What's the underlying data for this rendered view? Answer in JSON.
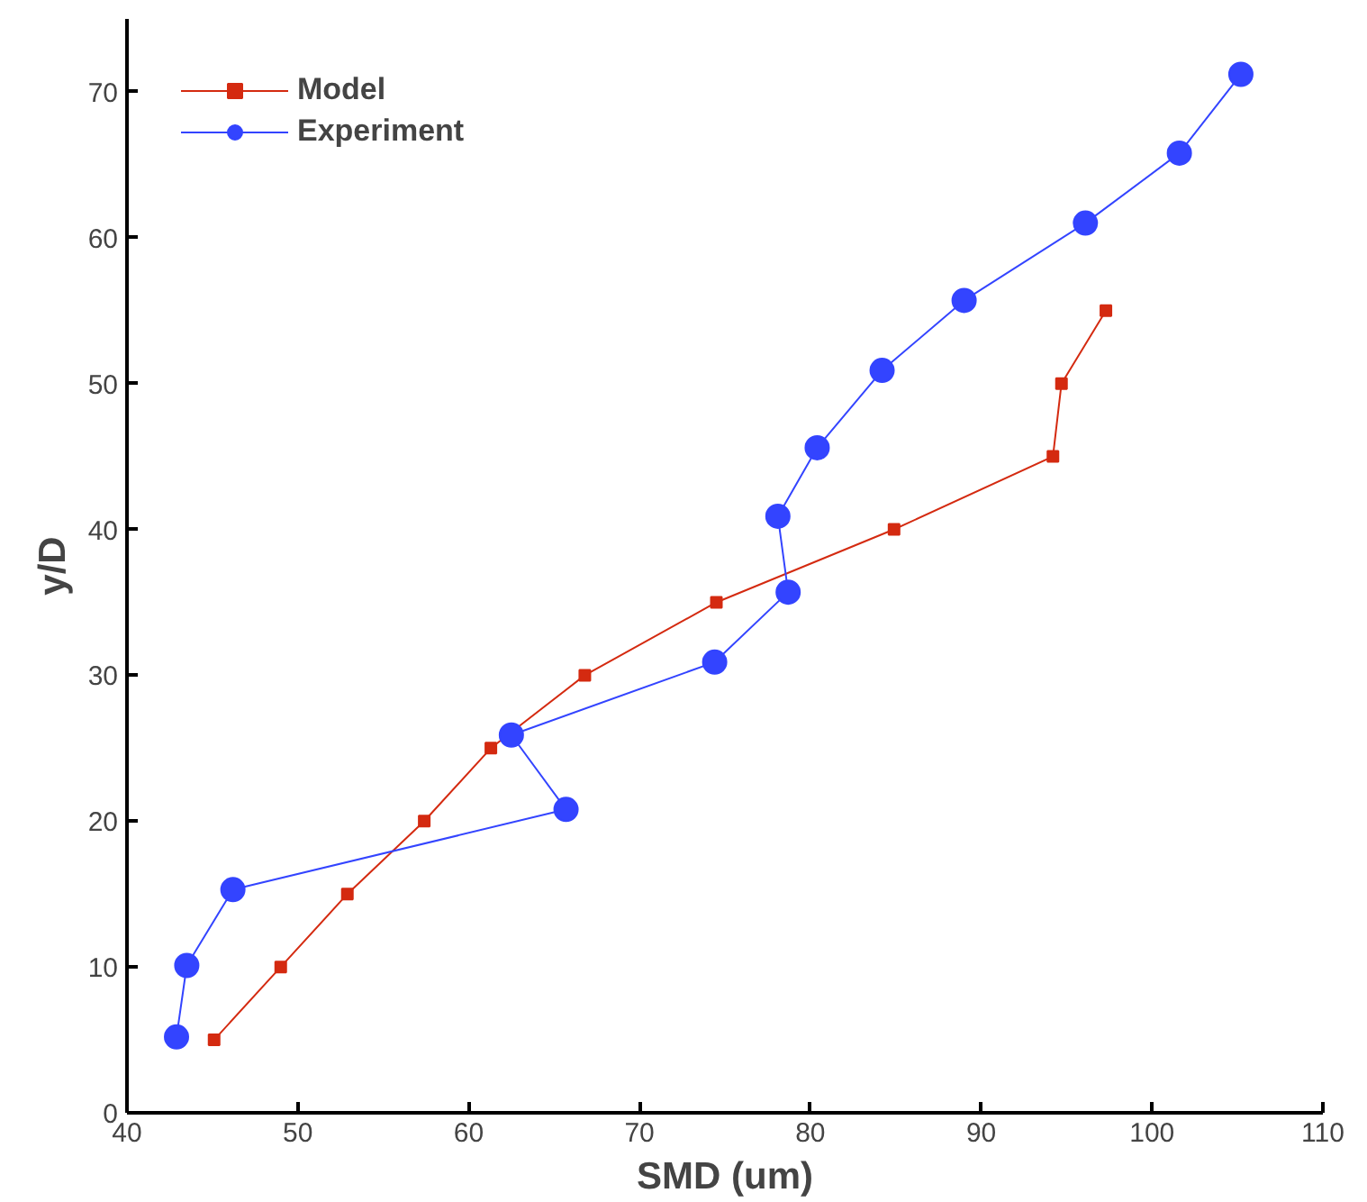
{
  "chart_data": {
    "type": "line",
    "xlabel": "SMD (um)",
    "ylabel": "y/D",
    "xlim": [
      40,
      110
    ],
    "ylim": [
      0,
      75
    ],
    "xticks": [
      40,
      50,
      60,
      70,
      80,
      90,
      100,
      110
    ],
    "yticks": [
      0,
      10,
      20,
      30,
      40,
      50,
      60,
      70
    ],
    "grid": false,
    "legend": "top left",
    "line_style": "solid",
    "series": [
      {
        "name": "Model",
        "color": "#d42a10",
        "marker": "square",
        "x": [
          45.1,
          49.0,
          52.9,
          57.4,
          61.3,
          66.8,
          74.5,
          84.9,
          94.2,
          94.7,
          97.3
        ],
        "values": [
          5,
          10,
          15,
          20,
          25,
          30,
          35,
          40,
          45,
          50,
          55
        ]
      },
      {
        "name": "Experiment",
        "color": "#3344ff",
        "marker": "circle",
        "x": [
          42.9,
          43.5,
          46.2,
          65.7,
          62.5,
          74.4,
          78.7,
          78.1,
          80.4,
          84.2,
          89.0,
          96.1,
          101.6,
          105.2
        ],
        "values": [
          5.2,
          10.1,
          15.3,
          20.8,
          25.9,
          30.9,
          35.7,
          40.9,
          45.6,
          50.9,
          55.7,
          61.0,
          65.8,
          71.2
        ]
      }
    ]
  }
}
